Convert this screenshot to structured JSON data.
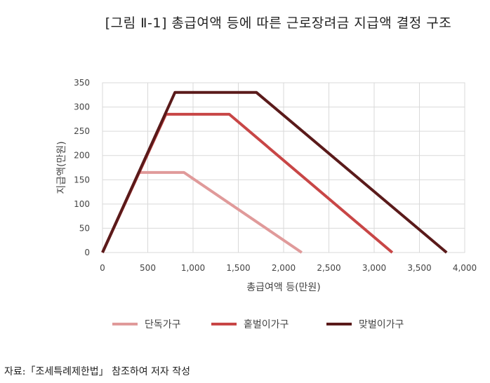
{
  "figure_title": "[그림 Ⅱ-1] 총급여액 등에 따른 근로장려금 지급액 결정 구조",
  "source_note": "자료:「조세특례제한법」 참조하여 저자 작성",
  "chart_data": {
    "type": "line",
    "title": "",
    "xlabel": "총급여액 등(만원)",
    "ylabel": "지급액(만원)",
    "xlim": [
      0,
      4000
    ],
    "ylim": [
      0,
      350
    ],
    "xticks": [
      0,
      500,
      1000,
      1500,
      2000,
      2500,
      3000,
      3500,
      4000
    ],
    "xtick_labels": [
      "0",
      "500",
      "1,000",
      "1,500",
      "2,000",
      "2,500",
      "3,000",
      "3,500",
      "4,000"
    ],
    "yticks": [
      0,
      50,
      100,
      150,
      200,
      250,
      300,
      350
    ],
    "ytick_labels": [
      "0",
      "50",
      "100",
      "150",
      "200",
      "250",
      "300",
      "350"
    ],
    "grid": true,
    "legend_position": "bottom",
    "series": [
      {
        "name": "단독가구",
        "color": "#e09a9a",
        "points": [
          [
            0,
            0
          ],
          [
            400,
            165
          ],
          [
            900,
            165
          ],
          [
            2200,
            0
          ]
        ]
      },
      {
        "name": "홑벌이가구",
        "color": "#c84646",
        "points": [
          [
            0,
            0
          ],
          [
            700,
            285
          ],
          [
            1400,
            285
          ],
          [
            3200,
            0
          ]
        ]
      },
      {
        "name": "맞벌이가구",
        "color": "#5a1a1a",
        "points": [
          [
            0,
            0
          ],
          [
            800,
            330
          ],
          [
            1700,
            330
          ],
          [
            3800,
            0
          ]
        ]
      }
    ]
  }
}
